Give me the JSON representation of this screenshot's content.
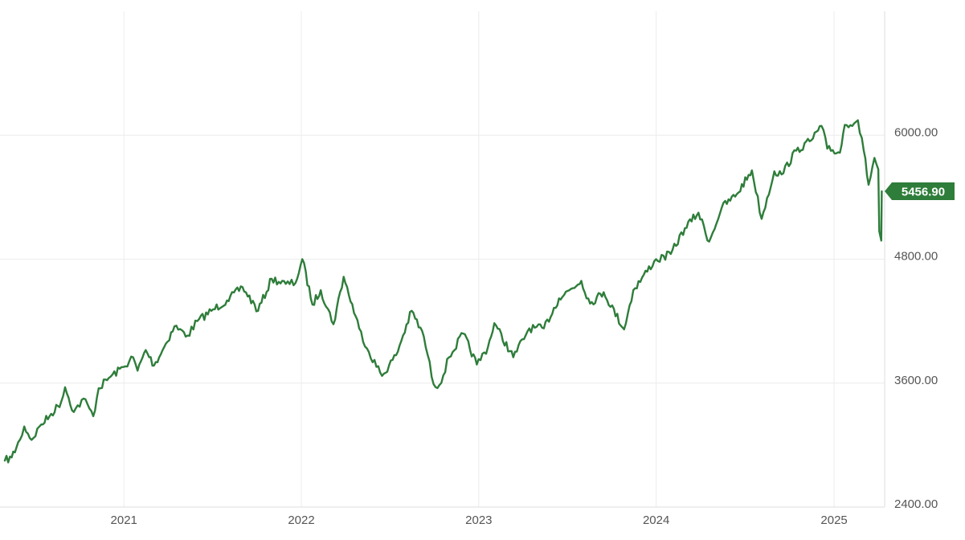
{
  "chart_data": {
    "type": "line",
    "title": "",
    "xlabel": "",
    "ylabel": "",
    "x_tick_labels": [
      "2021",
      "2022",
      "2023",
      "2024",
      "2025"
    ],
    "y_tick_labels": [
      "2400.00",
      "3600.00",
      "4800.00",
      "6000.00"
    ],
    "ylim": [
      2400,
      7200
    ],
    "xlim": [
      "2020-05-01",
      "2025-04-15"
    ],
    "y_axis_side": "right",
    "grid": true,
    "last_value_label": "5456.90",
    "series": [
      {
        "color": "#2e7d3a",
        "points": [
          [
            "2020-05-01",
            2850
          ],
          [
            "2020-05-15",
            2880
          ],
          [
            "2020-06-01",
            3050
          ],
          [
            "2020-06-10",
            3180
          ],
          [
            "2020-06-25",
            3050
          ],
          [
            "2020-07-15",
            3200
          ],
          [
            "2020-08-01",
            3280
          ],
          [
            "2020-08-25",
            3420
          ],
          [
            "2020-09-02",
            3560
          ],
          [
            "2020-09-20",
            3320
          ],
          [
            "2020-10-10",
            3450
          ],
          [
            "2020-10-30",
            3280
          ],
          [
            "2020-11-10",
            3550
          ],
          [
            "2020-12-01",
            3650
          ],
          [
            "2020-12-31",
            3756
          ],
          [
            "2021-01-20",
            3850
          ],
          [
            "2021-01-29",
            3720
          ],
          [
            "2021-02-15",
            3920
          ],
          [
            "2021-03-04",
            3770
          ],
          [
            "2021-03-25",
            3950
          ],
          [
            "2021-04-15",
            4150
          ],
          [
            "2021-05-12",
            4060
          ],
          [
            "2021-06-01",
            4200
          ],
          [
            "2021-06-30",
            4300
          ],
          [
            "2021-08-01",
            4400
          ],
          [
            "2021-09-02",
            4530
          ],
          [
            "2021-10-04",
            4300
          ],
          [
            "2021-11-01",
            4610
          ],
          [
            "2021-11-30",
            4560
          ],
          [
            "2021-12-20",
            4570
          ],
          [
            "2022-01-03",
            4800
          ],
          [
            "2022-01-24",
            4360
          ],
          [
            "2022-02-10",
            4500
          ],
          [
            "2022-03-08",
            4170
          ],
          [
            "2022-03-29",
            4630
          ],
          [
            "2022-04-30",
            4130
          ],
          [
            "2022-05-20",
            3900
          ],
          [
            "2022-06-16",
            3670
          ],
          [
            "2022-07-15",
            3870
          ],
          [
            "2022-08-16",
            4300
          ],
          [
            "2022-09-10",
            4050
          ],
          [
            "2022-09-30",
            3590
          ],
          [
            "2022-10-12",
            3580
          ],
          [
            "2022-11-01",
            3850
          ],
          [
            "2022-11-30",
            4080
          ],
          [
            "2022-12-28",
            3780
          ],
          [
            "2023-01-20",
            3950
          ],
          [
            "2023-02-02",
            4180
          ],
          [
            "2023-03-13",
            3850
          ],
          [
            "2023-04-15",
            4130
          ],
          [
            "2023-05-15",
            4130
          ],
          [
            "2023-06-15",
            4420
          ],
          [
            "2023-07-31",
            4590
          ],
          [
            "2023-08-18",
            4370
          ],
          [
            "2023-09-15",
            4480
          ],
          [
            "2023-10-27",
            4120
          ],
          [
            "2023-11-15",
            4500
          ],
          [
            "2023-12-28",
            4780
          ],
          [
            "2024-01-31",
            4850
          ],
          [
            "2024-02-29",
            5100
          ],
          [
            "2024-03-28",
            5250
          ],
          [
            "2024-04-19",
            4970
          ],
          [
            "2024-05-15",
            5300
          ],
          [
            "2024-06-15",
            5430
          ],
          [
            "2024-07-16",
            5660
          ],
          [
            "2024-08-05",
            5190
          ],
          [
            "2024-08-31",
            5650
          ],
          [
            "2024-09-15",
            5620
          ],
          [
            "2024-10-15",
            5850
          ],
          [
            "2024-11-15",
            5950
          ],
          [
            "2024-12-06",
            6090
          ],
          [
            "2024-12-18",
            5870
          ],
          [
            "2025-01-13",
            5830
          ],
          [
            "2025-01-23",
            6100
          ],
          [
            "2025-02-19",
            6144
          ],
          [
            "2025-03-03",
            5850
          ],
          [
            "2025-03-13",
            5520
          ],
          [
            "2025-03-25",
            5780
          ],
          [
            "2025-04-02",
            5670
          ],
          [
            "2025-04-04",
            5070
          ],
          [
            "2025-04-08",
            4980
          ],
          [
            "2025-04-09",
            5456.9
          ]
        ]
      }
    ]
  }
}
